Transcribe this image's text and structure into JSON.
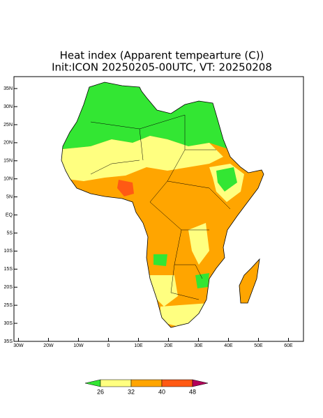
{
  "title": "Heat index (Apparent tempearture (C))",
  "subtitle": "Init:ICON 20250205-00UTC, VT: 20250208",
  "map": {
    "xlim": [
      -31.5,
      65
    ],
    "ylim": [
      -35,
      38.3
    ],
    "xticks": [
      {
        "value": -30,
        "label": "30W"
      },
      {
        "value": -20,
        "label": "20W"
      },
      {
        "value": -10,
        "label": "10W"
      },
      0,
      {
        "value": 10,
        "label": "10E"
      },
      {
        "value": 20,
        "label": "20E"
      },
      {
        "value": 30,
        "label": "30E"
      },
      {
        "value": 40,
        "label": "40E"
      },
      {
        "value": 50,
        "label": "50E"
      },
      {
        "value": 60,
        "label": "60E"
      }
    ],
    "yticks": [
      {
        "value": 35,
        "label": "35N"
      },
      {
        "value": 30,
        "label": "30N"
      },
      {
        "value": 25,
        "label": "25N"
      },
      {
        "value": 20,
        "label": "20N"
      },
      {
        "value": 15,
        "label": "15N"
      },
      {
        "value": 10,
        "label": "10N"
      },
      {
        "value": 5,
        "label": "5N"
      },
      {
        "value": 0,
        "label": "EQ"
      },
      {
        "value": -5,
        "label": "5S"
      },
      {
        "value": -10,
        "label": "10S"
      },
      {
        "value": -15,
        "label": "15S"
      },
      {
        "value": -20,
        "label": "20S"
      },
      {
        "value": -25,
        "label": "25S"
      },
      {
        "value": -30,
        "label": "30S"
      },
      {
        "value": -35,
        "label": "35S"
      }
    ]
  },
  "colorbar": {
    "levels": [
      26,
      32,
      40,
      48
    ],
    "colors": [
      "#33e633",
      "#ffff80",
      "#ffa500",
      "#ff5a14",
      "#b4005a"
    ]
  }
}
